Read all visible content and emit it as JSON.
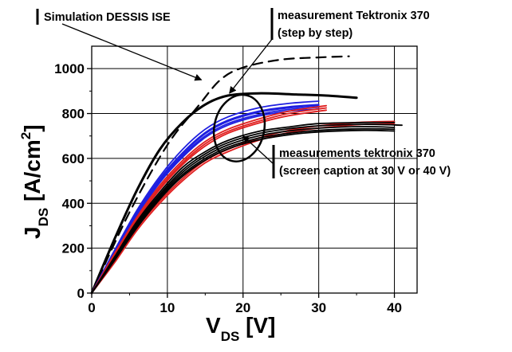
{
  "chart_data": {
    "type": "line",
    "xlabel": "V",
    "xlabel_sub": "DS",
    "xlabel_unit": " [V]",
    "ylabel": "J",
    "ylabel_sub": "DS",
    "ylabel_unit": " [A/cm",
    "ylabel_sup": "2",
    "ylabel_close": "]",
    "xlim": [
      0,
      43
    ],
    "ylim": [
      0,
      1100
    ],
    "x_ticks": [
      0,
      10,
      20,
      30,
      40
    ],
    "y_ticks": [
      0,
      200,
      400,
      600,
      800,
      1000
    ],
    "grid": true,
    "colors": {
      "black": "#000000",
      "blue": "#1f1fe0",
      "red": "#e01f1f"
    },
    "series": [
      {
        "group": "simulation",
        "color": "black",
        "dashed": true,
        "points": [
          [
            0,
            0
          ],
          [
            5,
            360
          ],
          [
            10,
            660
          ],
          [
            14,
            830
          ],
          [
            17,
            950
          ],
          [
            20,
            1005
          ],
          [
            25,
            1040
          ],
          [
            30,
            1050
          ],
          [
            34,
            1055
          ]
        ]
      },
      {
        "group": "step",
        "color": "black",
        "points": [
          [
            0,
            0
          ],
          [
            3,
            240
          ],
          [
            6,
            460
          ],
          [
            9,
            640
          ],
          [
            12,
            760
          ],
          [
            15,
            840
          ],
          [
            18,
            880
          ],
          [
            22,
            890
          ],
          [
            27,
            885
          ],
          [
            31,
            880
          ],
          [
            35,
            870
          ]
        ]
      },
      {
        "group": "blue",
        "color": "blue",
        "points": [
          [
            0,
            0
          ],
          [
            3,
            190
          ],
          [
            6,
            370
          ],
          [
            9,
            520
          ],
          [
            12,
            640
          ],
          [
            15,
            730
          ],
          [
            18,
            785
          ],
          [
            22,
            825
          ],
          [
            26,
            845
          ],
          [
            30,
            855
          ]
        ]
      },
      {
        "group": "blue",
        "color": "blue",
        "points": [
          [
            0,
            0
          ],
          [
            3,
            185
          ],
          [
            6,
            360
          ],
          [
            9,
            510
          ],
          [
            12,
            625
          ],
          [
            15,
            715
          ],
          [
            18,
            770
          ],
          [
            22,
            810
          ],
          [
            26,
            830
          ],
          [
            30,
            840
          ]
        ]
      },
      {
        "group": "blue",
        "color": "blue",
        "points": [
          [
            0,
            0
          ],
          [
            3,
            182
          ],
          [
            6,
            355
          ],
          [
            9,
            505
          ],
          [
            12,
            620
          ],
          [
            15,
            710
          ],
          [
            18,
            765
          ],
          [
            22,
            805
          ],
          [
            26,
            825
          ],
          [
            30,
            835
          ]
        ]
      },
      {
        "group": "blue",
        "color": "blue",
        "points": [
          [
            0,
            0
          ],
          [
            3,
            178
          ],
          [
            6,
            350
          ],
          [
            9,
            498
          ],
          [
            12,
            612
          ],
          [
            15,
            700
          ],
          [
            18,
            755
          ],
          [
            22,
            795
          ],
          [
            26,
            818
          ],
          [
            30,
            828
          ]
        ]
      },
      {
        "group": "blue",
        "color": "blue",
        "points": [
          [
            0,
            0
          ],
          [
            3,
            175
          ],
          [
            6,
            345
          ],
          [
            9,
            492
          ],
          [
            12,
            605
          ],
          [
            15,
            693
          ],
          [
            18,
            748
          ],
          [
            22,
            788
          ],
          [
            26,
            810
          ],
          [
            30,
            820
          ]
        ]
      },
      {
        "group": "red",
        "color": "red",
        "points": [
          [
            0,
            0
          ],
          [
            3,
            175
          ],
          [
            6,
            340
          ],
          [
            9,
            480
          ],
          [
            12,
            590
          ],
          [
            15,
            675
          ],
          [
            18,
            730
          ],
          [
            22,
            775
          ],
          [
            26,
            810
          ],
          [
            31,
            835
          ]
        ]
      },
      {
        "group": "red",
        "color": "red",
        "points": [
          [
            0,
            0
          ],
          [
            3,
            170
          ],
          [
            6,
            330
          ],
          [
            9,
            470
          ],
          [
            12,
            580
          ],
          [
            15,
            665
          ],
          [
            18,
            720
          ],
          [
            22,
            765
          ],
          [
            26,
            800
          ],
          [
            31,
            825
          ]
        ]
      },
      {
        "group": "red",
        "color": "red",
        "points": [
          [
            0,
            0
          ],
          [
            3,
            166
          ],
          [
            6,
            325
          ],
          [
            9,
            462
          ],
          [
            12,
            572
          ],
          [
            15,
            655
          ],
          [
            18,
            712
          ],
          [
            22,
            757
          ],
          [
            26,
            790
          ],
          [
            31,
            815
          ]
        ]
      },
      {
        "group": "red",
        "color": "red",
        "points": [
          [
            0,
            0
          ],
          [
            3,
            140
          ],
          [
            6,
            290
          ],
          [
            9,
            410
          ],
          [
            12,
            510
          ],
          [
            15,
            590
          ],
          [
            18,
            640
          ],
          [
            22,
            690
          ],
          [
            26,
            725
          ],
          [
            30,
            745
          ],
          [
            35,
            760
          ],
          [
            40,
            765
          ]
        ]
      },
      {
        "group": "red",
        "color": "red",
        "points": [
          [
            0,
            0
          ],
          [
            3,
            135
          ],
          [
            6,
            280
          ],
          [
            9,
            400
          ],
          [
            12,
            500
          ],
          [
            15,
            580
          ],
          [
            18,
            630
          ],
          [
            22,
            680
          ],
          [
            26,
            715
          ],
          [
            30,
            735
          ],
          [
            35,
            750
          ],
          [
            40,
            755
          ]
        ]
      },
      {
        "group": "black",
        "color": "black",
        "points": [
          [
            0,
            0
          ],
          [
            3,
            160
          ],
          [
            6,
            320
          ],
          [
            9,
            450
          ],
          [
            12,
            560
          ],
          [
            15,
            630
          ],
          [
            18,
            680
          ],
          [
            22,
            720
          ],
          [
            26,
            740
          ],
          [
            30,
            755
          ],
          [
            36,
            760
          ],
          [
            40,
            760
          ]
        ]
      },
      {
        "group": "black",
        "color": "black",
        "points": [
          [
            0,
            0
          ],
          [
            3,
            155
          ],
          [
            6,
            312
          ],
          [
            9,
            440
          ],
          [
            12,
            548
          ],
          [
            15,
            620
          ],
          [
            18,
            670
          ],
          [
            22,
            710
          ],
          [
            26,
            732
          ],
          [
            30,
            745
          ],
          [
            36,
            752
          ],
          [
            41,
            748
          ]
        ]
      },
      {
        "group": "black",
        "color": "black",
        "points": [
          [
            0,
            0
          ],
          [
            3,
            150
          ],
          [
            6,
            305
          ],
          [
            9,
            432
          ],
          [
            12,
            538
          ],
          [
            15,
            610
          ],
          [
            18,
            660
          ],
          [
            22,
            700
          ],
          [
            26,
            722
          ],
          [
            30,
            735
          ],
          [
            36,
            742
          ],
          [
            40,
            738
          ]
        ]
      },
      {
        "group": "black",
        "color": "black",
        "points": [
          [
            0,
            0
          ],
          [
            3,
            148
          ],
          [
            6,
            298
          ],
          [
            9,
            424
          ],
          [
            12,
            528
          ],
          [
            15,
            600
          ],
          [
            18,
            650
          ],
          [
            22,
            690
          ],
          [
            26,
            712
          ],
          [
            30,
            725
          ],
          [
            36,
            732
          ],
          [
            40,
            730
          ]
        ]
      },
      {
        "group": "black",
        "color": "black",
        "points": [
          [
            0,
            0
          ],
          [
            3,
            145
          ],
          [
            6,
            292
          ],
          [
            9,
            418
          ],
          [
            12,
            520
          ],
          [
            15,
            592
          ],
          [
            18,
            642
          ],
          [
            22,
            682
          ],
          [
            26,
            705
          ],
          [
            30,
            718
          ],
          [
            36,
            725
          ],
          [
            40,
            722
          ]
        ]
      }
    ],
    "ellipse": {
      "cx": 19.5,
      "cy": 735,
      "rx": 3.3,
      "ry": 150,
      "rotate": 12
    },
    "annotations": [
      {
        "text": "Simulation DESSIS ISE",
        "target": [
          14.5,
          950
        ]
      },
      {
        "text": "measurement Tektronix 370",
        "line2": "(step by step)",
        "target": [
          18.2,
          890
        ]
      },
      {
        "text": "measurements tektronix 370",
        "line2": "(screen caption at 30 V or 40 V)",
        "target": [
          20.0,
          700
        ]
      }
    ]
  }
}
